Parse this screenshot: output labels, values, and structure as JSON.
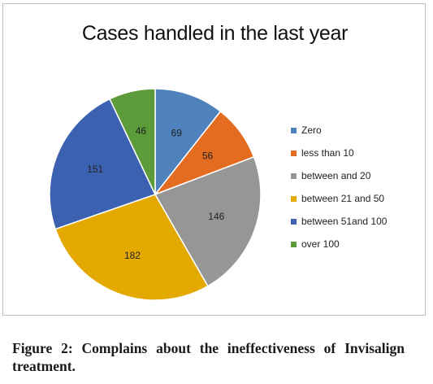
{
  "chart_data": {
    "type": "pie",
    "title": "Cases handled in the last year",
    "categories": [
      "Zero",
      "less than 10",
      "between  and 20",
      "between 21 and 50",
      "between 51and 100",
      "over 100"
    ],
    "values": [
      69,
      56,
      146,
      182,
      151,
      46
    ],
    "colors": [
      "#4f81bd",
      "#e36c21",
      "#969696",
      "#e4a900",
      "#3b61b0",
      "#5b9b3a"
    ],
    "legend_position": "right"
  },
  "caption": "Figure 2: Complains about the ineffectiveness of Invisalign treatment."
}
